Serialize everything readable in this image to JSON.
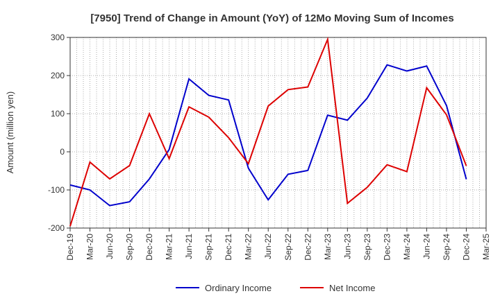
{
  "chart_data": {
    "type": "line",
    "title": "[7950]  Trend of Change in Amount (YoY) of 12Mo Moving Sum of Incomes",
    "xlabel": "",
    "ylabel": "Amount (million yen)",
    "ylim": [
      -200,
      300
    ],
    "yticks": [
      -200,
      -100,
      0,
      100,
      200,
      300
    ],
    "grid": true,
    "legend_position": "bottom",
    "categories": [
      "Dec-19",
      "Mar-20",
      "Jun-20",
      "Sep-20",
      "Dec-20",
      "Mar-21",
      "Jun-21",
      "Sep-21",
      "Dec-21",
      "Mar-22",
      "Jun-22",
      "Sep-22",
      "Dec-22",
      "Mar-23",
      "Jun-23",
      "Sep-23",
      "Dec-23",
      "Mar-24",
      "Jun-24",
      "Sep-24",
      "Dec-24",
      "Mar-25"
    ],
    "series": [
      {
        "name": "Ordinary Income",
        "color": "#0000cc",
        "values": [
          -87,
          -100,
          -141,
          -131,
          -71,
          6,
          191,
          148,
          136,
          -43,
          -126,
          -59,
          -49,
          96,
          83,
          141,
          228,
          212,
          225,
          121,
          -72,
          null
        ]
      },
      {
        "name": "Net Income",
        "color": "#dd0000",
        "values": [
          -195,
          -27,
          -71,
          -36,
          100,
          -18,
          118,
          91,
          37,
          -31,
          120,
          163,
          170,
          295,
          -135,
          -93,
          -34,
          -52,
          168,
          97,
          -37,
          null
        ]
      }
    ]
  }
}
